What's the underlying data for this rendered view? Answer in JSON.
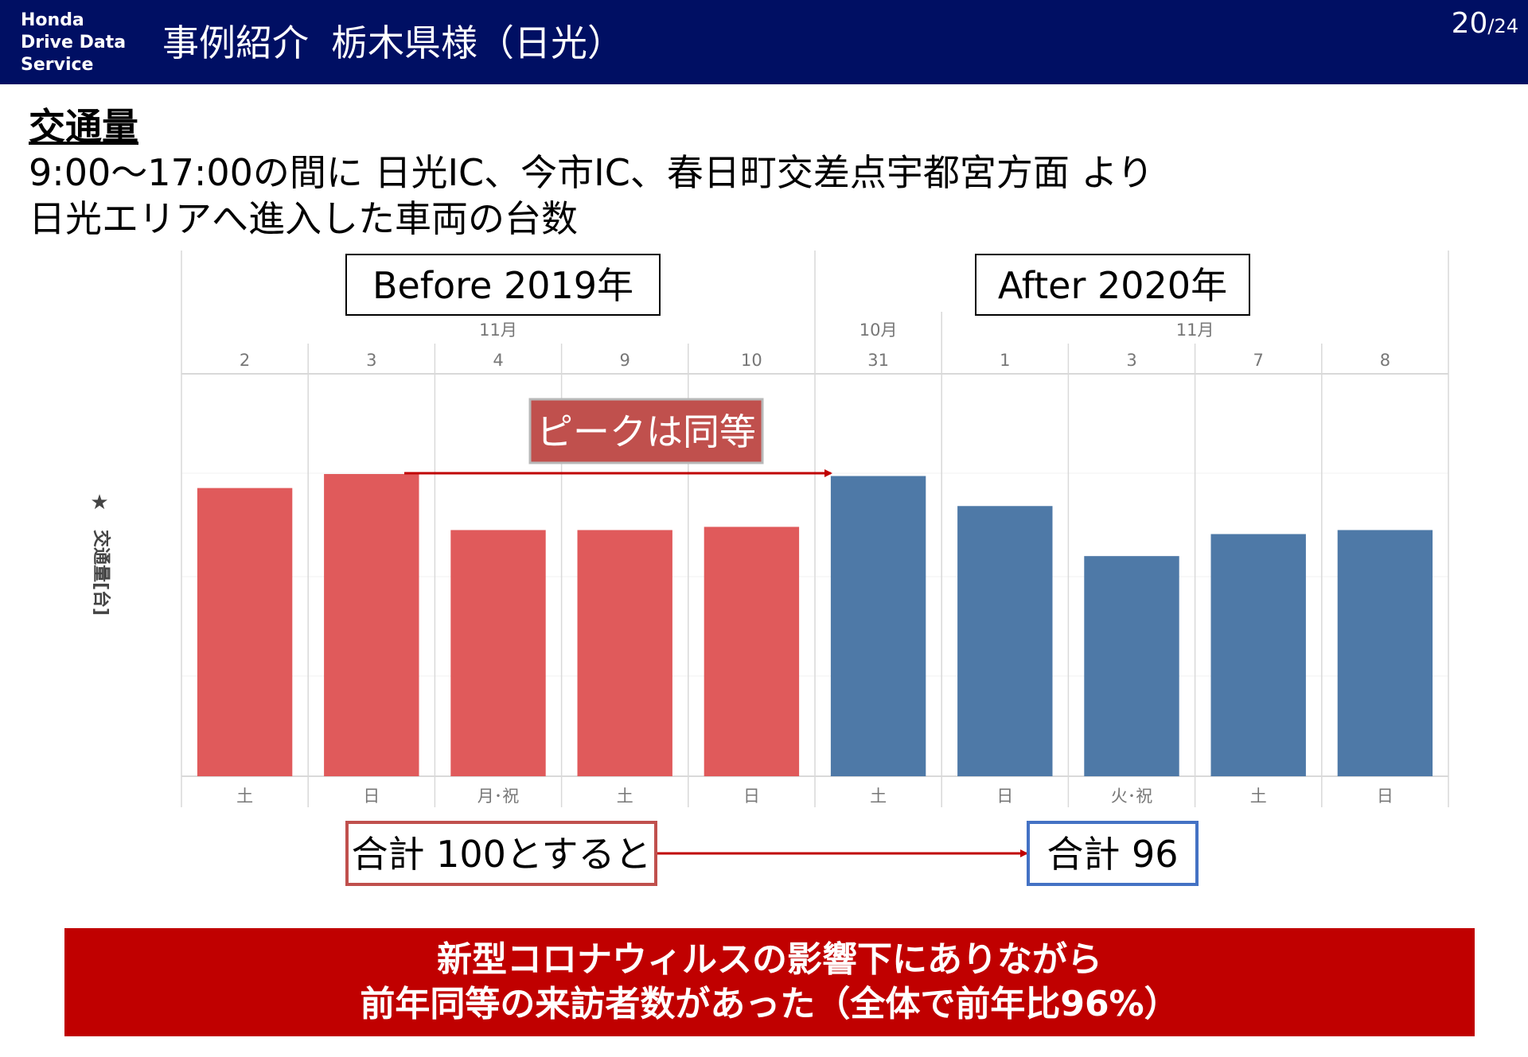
{
  "header": {
    "logo_lines": [
      "Honda",
      "Drive Data",
      "Service"
    ],
    "title_part1": "事例紹介",
    "title_part2": "栃木県様（日光）",
    "page_current": "20",
    "page_total": "/24",
    "bg_color": "#000f63"
  },
  "section": {
    "title": "交通量",
    "description_lines": [
      "9:00～17:00の間に 日光IC、今市IC、春日町交差点宇都宮方面 より",
      "日光エリアへ進入した車両の台数"
    ]
  },
  "chart_data": {
    "type": "bar",
    "ylabel": "交通量[台]",
    "ylim": [
      0,
      100
    ],
    "grid": true,
    "periods": [
      {
        "label": "Before 2019年",
        "color": "#e05a5b"
      },
      {
        "label": "After 2020年",
        "color": "#4e79a7"
      }
    ],
    "month_headers": [
      {
        "label": "11月",
        "from": 0,
        "to": 4
      },
      {
        "label": "10月",
        "from": 5,
        "to": 5
      },
      {
        "label": "11月",
        "from": 6,
        "to": 9
      }
    ],
    "categories": [
      "2",
      "3",
      "4",
      "9",
      "10",
      "31",
      "1",
      "3",
      "7",
      "8"
    ],
    "weekdays": [
      "土",
      "日",
      "月･祝",
      "土",
      "日",
      "土",
      "日",
      "火･祝",
      "土",
      "日"
    ],
    "period_index": [
      0,
      0,
      0,
      0,
      0,
      1,
      1,
      1,
      1,
      1
    ],
    "values": [
      72,
      75.5,
      61.5,
      61.5,
      62.3,
      75,
      67.5,
      55,
      60.5,
      61.5
    ]
  },
  "annotations": {
    "peak_label": "ピークは同等",
    "peak_color": "#c0504d",
    "total_before": "合計 100とすると",
    "total_after": "合計 96",
    "before_border": "#c0504d",
    "after_border": "#4472c4",
    "arrow_color": "#c00000"
  },
  "conclusion": {
    "lines": [
      "新型コロナウィルスの影響下にありながら",
      "前年同等の来訪者数があった（全体で前年比96%）"
    ],
    "bg_color": "#c00000"
  }
}
